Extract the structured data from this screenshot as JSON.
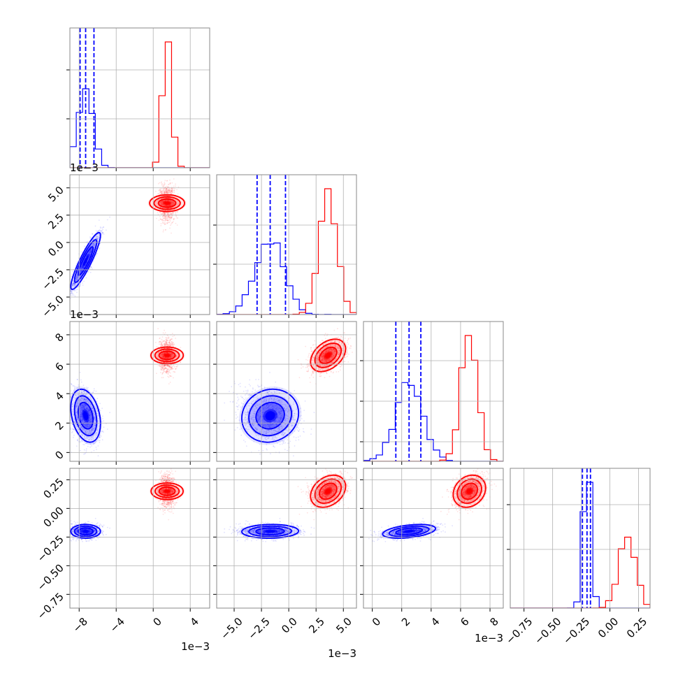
{
  "chart_data": {
    "type": "corner",
    "params": [
      {
        "ticks": [
          -8,
          -4,
          0,
          4
        ],
        "tick_labels": [
          "−8",
          "−4",
          "0",
          "4"
        ],
        "range": [
          -9,
          6.1
        ],
        "offset_label": "1e−3",
        "scale": 0.001
      },
      {
        "ticks": [
          -5,
          -2.5,
          0,
          2.5,
          5
        ],
        "tick_labels": [
          "−5.0",
          "−2.5",
          "0.0",
          "2.5",
          "5.0"
        ],
        "range": [
          -6.6,
          6.2
        ],
        "offset_label": "1e−3",
        "scale": 0.001
      },
      {
        "ticks": [
          0,
          2,
          4,
          6,
          8
        ],
        "tick_labels": [
          "0",
          "2",
          "4",
          "6",
          "8"
        ],
        "range": [
          -0.6,
          8.9
        ],
        "offset_label": "1e−3",
        "scale": 0.001
      },
      {
        "ticks": [
          -0.75,
          -0.5,
          -0.25,
          0,
          0.25
        ],
        "tick_labels": [
          "−0.75",
          "−0.50",
          "−0.25",
          "0.00",
          "0.25"
        ],
        "range": [
          -0.87,
          0.35
        ],
        "offset_label": "",
        "scale": 1
      }
    ],
    "series": [
      {
        "color": "#0000ff",
        "means": [
          -7.3,
          -1.7,
          2.5,
          -0.2
        ],
        "stds": [
          0.8,
          1.3,
          0.9,
          0.03
        ],
        "correlations": [
          [
            0,
            1,
            0.9
          ],
          [
            0,
            2,
            -0.3
          ],
          [
            1,
            2,
            0.1
          ],
          [
            1,
            3,
            0.05
          ],
          [
            2,
            3,
            0.4
          ]
        ],
        "quantiles": [
          [
            -7.9,
            -7.3,
            -6.4
          ],
          [
            -2.9,
            -1.7,
            -0.3
          ],
          [
            1.6,
            2.5,
            3.3
          ],
          [
            -0.24,
            -0.2,
            -0.17
          ]
        ],
        "quantile_lines": true
      },
      {
        "color": "#ff0000",
        "means": [
          1.5,
          3.6,
          6.6,
          0.15
        ],
        "stds": [
          0.45,
          0.8,
          0.55,
          0.07
        ],
        "correlations": [
          [
            1,
            2,
            0.4
          ],
          [
            1,
            3,
            0.3
          ],
          [
            2,
            3,
            0.2
          ]
        ],
        "quantiles": [],
        "quantile_lines": false
      }
    ],
    "hist_bins": 20,
    "grid": true
  },
  "colors": {
    "series_a": "#0000ff",
    "series_b": "#ff0000",
    "grid": "#b0b0b0",
    "frame": "#888888"
  }
}
